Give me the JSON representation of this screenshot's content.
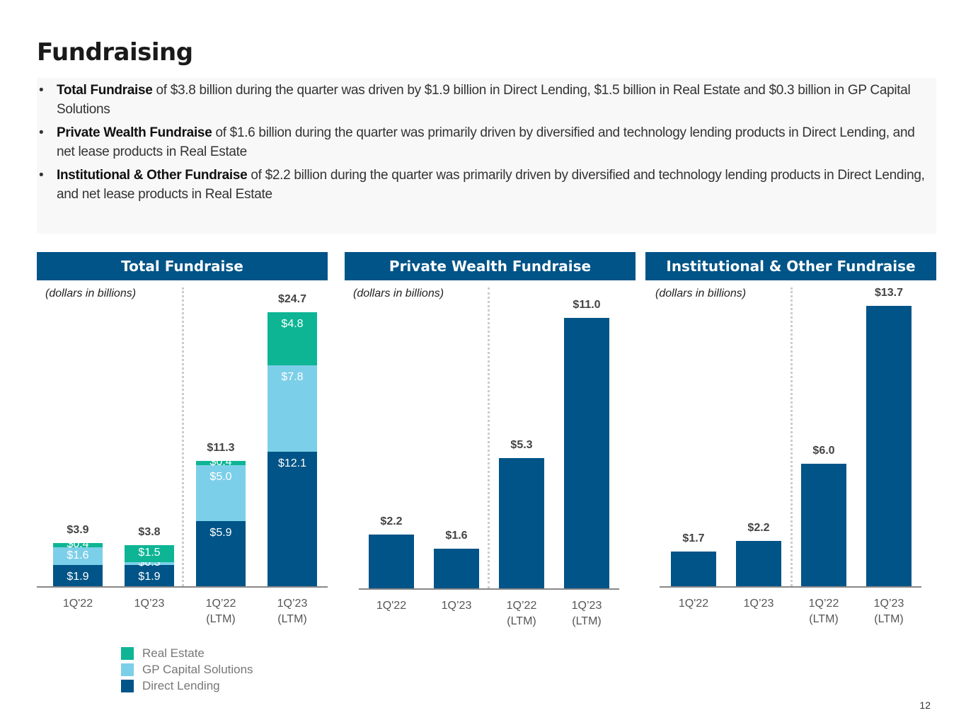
{
  "title": "Fundraising",
  "bullets": [
    {
      "bold": "Total Fundraise",
      "text": " of $3.8 billion during the quarter was driven by $1.9 billion in Direct Lending, $1.5 billion in Real Estate and $0.3 billion in GP Capital Solutions"
    },
    {
      "bold": "Private Wealth Fundraise",
      "text": " of $1.6 billion during the quarter was primarily driven by diversified and technology lending products in Direct Lending, and net lease products in Real Estate"
    },
    {
      "bold": "Institutional & Other Fundraise",
      "text": " of $2.2 billion during the quarter was primarily driven by diversified and technology lending products in Direct Lending, and net lease products in Real Estate"
    }
  ],
  "bullet_char": "•",
  "colors": {
    "direct_lending": "#005487",
    "gp_capital": "#7ccfe8",
    "real_estate": "#0db594",
    "header": "#005487"
  },
  "chart_data": [
    {
      "type": "bar",
      "stacked": true,
      "title": "Total Fundraise",
      "note": "(dollars in billions)",
      "categories": [
        "1Q'22",
        "1Q’23",
        "1Q’22\n(LTM)",
        "1Q’23\n(LTM)"
      ],
      "series": [
        {
          "name": "Direct Lending",
          "values": [
            1.9,
            1.9,
            5.9,
            12.1
          ],
          "labels": [
            "$1.9",
            "$1.9",
            "$5.9",
            "$12.1"
          ]
        },
        {
          "name": "GP Capital Solutions",
          "values": [
            1.6,
            0.3,
            5.0,
            7.8
          ],
          "labels": [
            "$1.6",
            "$0.3",
            "$5.0",
            "$7.8"
          ]
        },
        {
          "name": "Real Estate",
          "values": [
            0.4,
            1.5,
            0.4,
            4.8
          ],
          "labels": [
            "$0.4",
            "$1.5",
            "$0.4",
            "$4.8"
          ]
        }
      ],
      "totals": [
        "$3.9",
        "$3.8",
        "$11.3",
        "$24.7"
      ],
      "legend": [
        "Real Estate",
        "GP Capital Solutions",
        "Direct Lending"
      ],
      "legend_placement": "bottom-left"
    },
    {
      "type": "bar",
      "title": "Private Wealth Fundraise",
      "note": "(dollars in billions)",
      "categories": [
        "1Q'22",
        "1Q’23",
        "1Q’22\n(LTM)",
        "1Q’23\n(LTM)"
      ],
      "values": [
        2.2,
        1.6,
        5.3,
        11.0
      ],
      "totals": [
        "$2.2",
        "$1.6",
        "$5.3",
        "$11.0"
      ]
    },
    {
      "type": "bar",
      "title": "Institutional & Other Fundraise",
      "note": "(dollars in billions)",
      "categories": [
        "1Q'22",
        "1Q’23",
        "1Q’22\n(LTM)",
        "1Q’23\n(LTM)"
      ],
      "values": [
        1.7,
        2.2,
        6.0,
        13.7
      ],
      "totals": [
        "$1.7",
        "$2.2",
        "$6.0",
        "$13.7"
      ]
    }
  ],
  "page_number": "12"
}
